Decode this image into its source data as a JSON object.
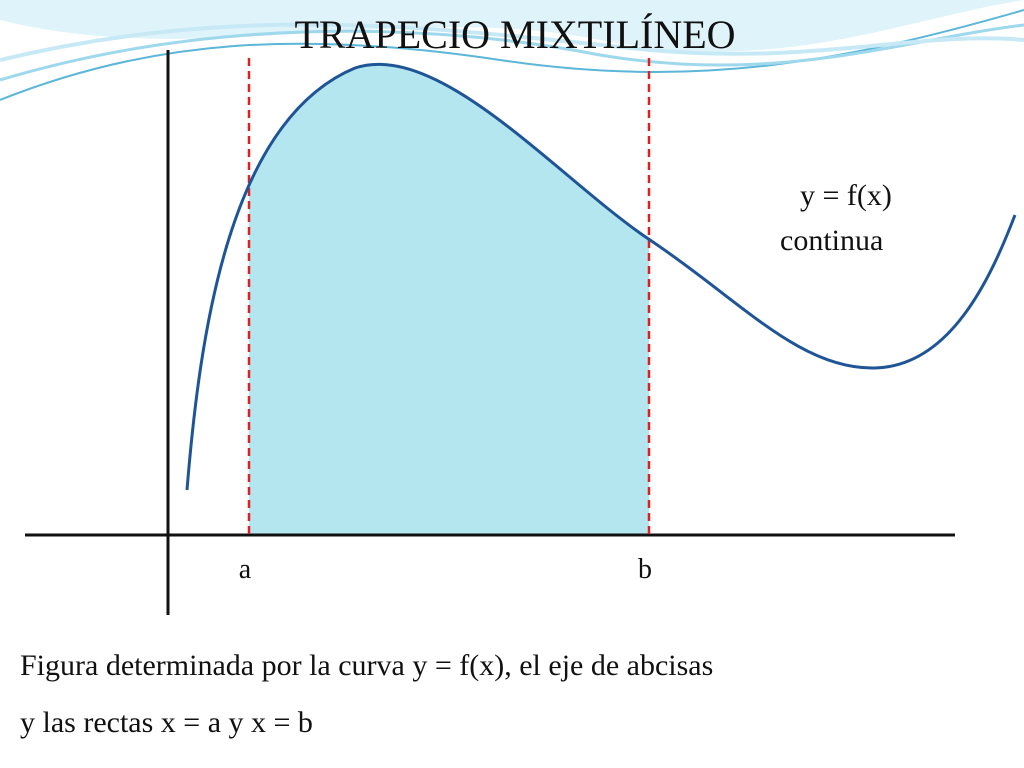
{
  "header": {
    "title": "TRAPECIO MIXTILÍNEO"
  },
  "curve": {
    "label": "y = f(x)",
    "note": "continua"
  },
  "axis": {
    "a": "a",
    "b": "b"
  },
  "caption": {
    "lines": [
      "Figura determinada por la curva y = f(x), el eje de abcisas",
      "y las rectas x = a y x = b"
    ]
  }
}
